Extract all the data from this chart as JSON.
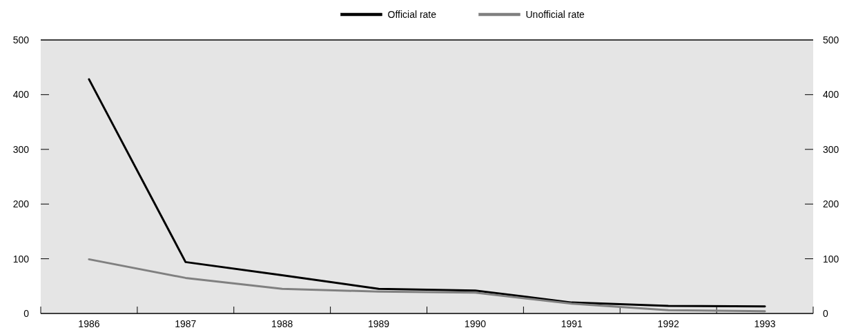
{
  "chart_data": {
    "type": "line",
    "categories": [
      "1986",
      "1987",
      "1988",
      "1989",
      "1990",
      "1991",
      "1992",
      "1993"
    ],
    "series": [
      {
        "name": "Official rate",
        "color": "#000000",
        "values": [
          428,
          94,
          70,
          45,
          42,
          20,
          14,
          13
        ]
      },
      {
        "name": "Unofficial rate",
        "color": "#808080",
        "values": [
          99,
          65,
          45,
          40,
          38,
          18,
          6,
          4
        ]
      }
    ],
    "ylim": [
      0,
      500
    ],
    "yticks": [
      0,
      100,
      200,
      300,
      400,
      500
    ],
    "y2lim": [
      0,
      500
    ],
    "y2ticks": [
      0,
      100,
      200,
      300,
      400,
      500
    ],
    "legend": "top",
    "grid": false,
    "marker": "none",
    "line_style": "solid"
  }
}
